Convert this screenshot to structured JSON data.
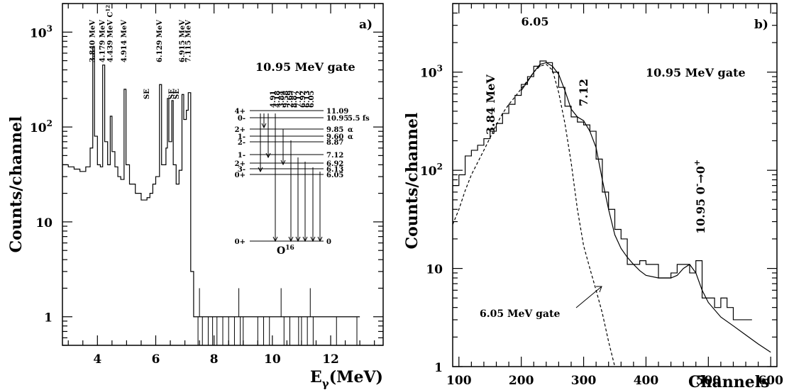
{
  "chart_data": [
    {
      "id": "a",
      "type": "line",
      "panel_label": "a)",
      "gate_label": "10.95 MeV gate",
      "ylabel": "Counts/channel",
      "xlabel_main": "E",
      "xlabel_sub": "γ",
      "xlabel_unit": "(MeV)",
      "x_range": [
        2.8,
        13.8
      ],
      "y_range": [
        0.5,
        2000
      ],
      "y_scale": "log",
      "x_ticks": [
        "4",
        "6",
        "8",
        "10",
        "12"
      ],
      "y_ticks": [
        {
          "value": 1,
          "label": "1"
        },
        {
          "value": 10,
          "label": "10"
        },
        {
          "value": 100,
          "base": "10",
          "exp": "2"
        },
        {
          "value": 1000,
          "base": "10",
          "exp": "3"
        }
      ],
      "peak_labels": [
        {
          "x": 3.84,
          "text": "3.840 MeV"
        },
        {
          "x": 4.179,
          "text": "4.179 MeV"
        },
        {
          "x": 4.439,
          "text": "4.439 MeV C",
          "sup": "12"
        },
        {
          "x": 4.914,
          "text": "4.914 MeV"
        },
        {
          "x": 6.129,
          "text": "6.129 MeV"
        },
        {
          "x": 6.915,
          "text": "6.915 MeV"
        },
        {
          "x": 7.115,
          "text": "7.115 MeV"
        }
      ],
      "se_labels": [
        "SE",
        "SE",
        "SE"
      ],
      "points": [
        [
          2.8,
          40
        ],
        [
          3.0,
          38
        ],
        [
          3.2,
          36
        ],
        [
          3.4,
          34
        ],
        [
          3.6,
          38
        ],
        [
          3.75,
          60
        ],
        [
          3.84,
          700
        ],
        [
          3.9,
          80
        ],
        [
          4.0,
          40
        ],
        [
          4.1,
          38
        ],
        [
          4.18,
          450
        ],
        [
          4.25,
          70
        ],
        [
          4.35,
          40
        ],
        [
          4.44,
          130
        ],
        [
          4.5,
          55
        ],
        [
          4.6,
          38
        ],
        [
          4.7,
          30
        ],
        [
          4.8,
          28
        ],
        [
          4.914,
          250
        ],
        [
          4.98,
          40
        ],
        [
          5.1,
          25
        ],
        [
          5.3,
          20
        ],
        [
          5.5,
          17
        ],
        [
          5.7,
          18
        ],
        [
          5.8,
          20
        ],
        [
          5.9,
          25
        ],
        [
          6.0,
          30
        ],
        [
          6.129,
          280
        ],
        [
          6.2,
          40
        ],
        [
          6.35,
          60
        ],
        [
          6.4,
          200
        ],
        [
          6.45,
          70
        ],
        [
          6.55,
          190
        ],
        [
          6.6,
          40
        ],
        [
          6.7,
          25
        ],
        [
          6.8,
          35
        ],
        [
          6.9,
          220
        ],
        [
          6.96,
          120
        ],
        [
          7.05,
          150
        ],
        [
          7.115,
          230
        ],
        [
          7.2,
          3
        ],
        [
          7.3,
          1
        ],
        [
          7.5,
          1
        ],
        [
          8.0,
          1
        ],
        [
          9.0,
          1
        ],
        [
          10.0,
          1
        ],
        [
          12.0,
          1
        ],
        [
          13.0,
          1
        ]
      ],
      "level_scheme": {
        "nucleus": "O",
        "mass_number": "16",
        "transitions": [
          "4.91",
          "4.18",
          "3.84",
          "9.58",
          "2.69",
          "8.87",
          "7.12",
          "6.92",
          "6.13",
          "6.05"
        ],
        "levels": [
          {
            "spin": "4+",
            "energy": "11.09",
            "extra": ""
          },
          {
            "spin": "0-",
            "energy": "10.95",
            "extra": "5.5 fs"
          },
          {
            "spin": "2+",
            "energy": "9.85",
            "extra": "α"
          },
          {
            "spin": "1-",
            "energy": "9.60",
            "extra": "α"
          },
          {
            "spin": "2-",
            "energy": "8.87",
            "extra": ""
          },
          {
            "spin": "1-",
            "energy": "7.12",
            "extra": ""
          },
          {
            "spin": "2+",
            "energy": "6.92",
            "extra": ""
          },
          {
            "spin": "3-",
            "energy": "6.13",
            "extra": ""
          },
          {
            "spin": "0+",
            "energy": "6.05",
            "extra": ""
          },
          {
            "spin": "0+",
            "energy": "0",
            "extra": ""
          }
        ]
      }
    },
    {
      "id": "b",
      "type": "line",
      "panel_label": "b)",
      "gate_label": "10.95 MeV gate",
      "ylabel": "Counts/channel",
      "xlabel": "Channels",
      "x_range": [
        90,
        610
      ],
      "y_range": [
        1,
        5000
      ],
      "y_scale": "log",
      "x_ticks": [
        "100",
        "200",
        "300",
        "400",
        "500",
        "600"
      ],
      "y_ticks": [
        {
          "value": 1,
          "label": "1"
        },
        {
          "value": 10,
          "label": "10"
        },
        {
          "value": 100,
          "base": "10",
          "exp": "2"
        },
        {
          "value": 1000,
          "base": "10",
          "exp": "3"
        }
      ],
      "annotations": {
        "peak_605": "6.05",
        "peak_712": "7.12",
        "peak_384": "3.84 MeV",
        "transition": "10.95 0",
        "transition_sup1": "-",
        "transition_arrow": "→0",
        "transition_sup2": "+",
        "gate_605": "6.05 MeV gate"
      },
      "series": [
        {
          "kind": "histogram",
          "bin_width": 10,
          "x": [
            90,
            100,
            110,
            120,
            130,
            140,
            150,
            160,
            170,
            180,
            190,
            200,
            210,
            220,
            230,
            240,
            250,
            260,
            270,
            280,
            290,
            300,
            310,
            320,
            330,
            340,
            350,
            360,
            370,
            380,
            390,
            400,
            410,
            420,
            430,
            440,
            450,
            460,
            470,
            480,
            490,
            500,
            510,
            520,
            530,
            540,
            550,
            560
          ],
          "values": [
            70,
            90,
            140,
            160,
            180,
            210,
            250,
            300,
            380,
            470,
            580,
            750,
            900,
            1150,
            1300,
            1250,
            1000,
            700,
            450,
            350,
            310,
            290,
            250,
            130,
            60,
            40,
            25,
            20,
            11,
            11,
            12,
            11,
            11,
            8,
            8,
            9,
            11,
            11,
            9,
            12,
            5,
            5,
            4,
            5,
            4,
            3,
            3,
            3
          ]
        },
        {
          "kind": "fit",
          "x": [
            200,
            210,
            220,
            230,
            240,
            250,
            260,
            270,
            280,
            290,
            300,
            310,
            320,
            330,
            340,
            350,
            360,
            370,
            380,
            390,
            400,
            420,
            440,
            450,
            460,
            470,
            480,
            490,
            500,
            520,
            540,
            560,
            580,
            600
          ],
          "values": [
            650,
            800,
            1000,
            1200,
            1250,
            1150,
            950,
            650,
            420,
            350,
            320,
            250,
            170,
            80,
            40,
            22,
            16,
            13,
            11,
            9.5,
            8.5,
            8,
            8,
            8.5,
            10,
            11,
            9,
            6,
            4.5,
            3.2,
            2.6,
            2.1,
            1.7,
            1.4
          ]
        },
        {
          "kind": "dashed",
          "x": [
            90,
            100,
            110,
            120,
            130,
            140,
            150,
            160,
            170,
            180,
            190,
            200,
            210,
            220,
            230,
            240,
            250,
            260,
            270,
            280,
            290,
            300,
            310,
            320,
            330,
            340,
            350
          ],
          "values": [
            28,
            40,
            62,
            90,
            120,
            160,
            215,
            290,
            380,
            470,
            560,
            680,
            820,
            1000,
            1150,
            1200,
            1050,
            620,
            300,
            120,
            40,
            17,
            10,
            6,
            3.5,
            1.8,
            1.0
          ]
        }
      ]
    }
  ]
}
